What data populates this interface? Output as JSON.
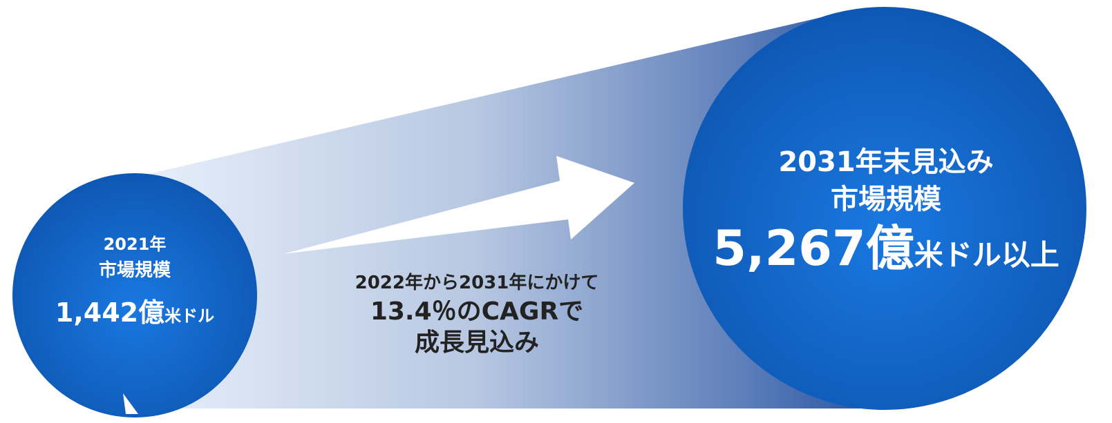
{
  "left": {
    "year": "2021年",
    "label": "市場規模",
    "value": "1,442",
    "unit_big": "億",
    "unit_small": "米ドル"
  },
  "middle": {
    "line1": "2022年から2031年にかけて",
    "line2": "13.4％のCAGRで",
    "line3": "成長見込み"
  },
  "right": {
    "line1": "2031年末見込み",
    "label": "市場規模",
    "value": "5,267",
    "unit_big": "億",
    "unit_small": "米ドル以上"
  }
}
